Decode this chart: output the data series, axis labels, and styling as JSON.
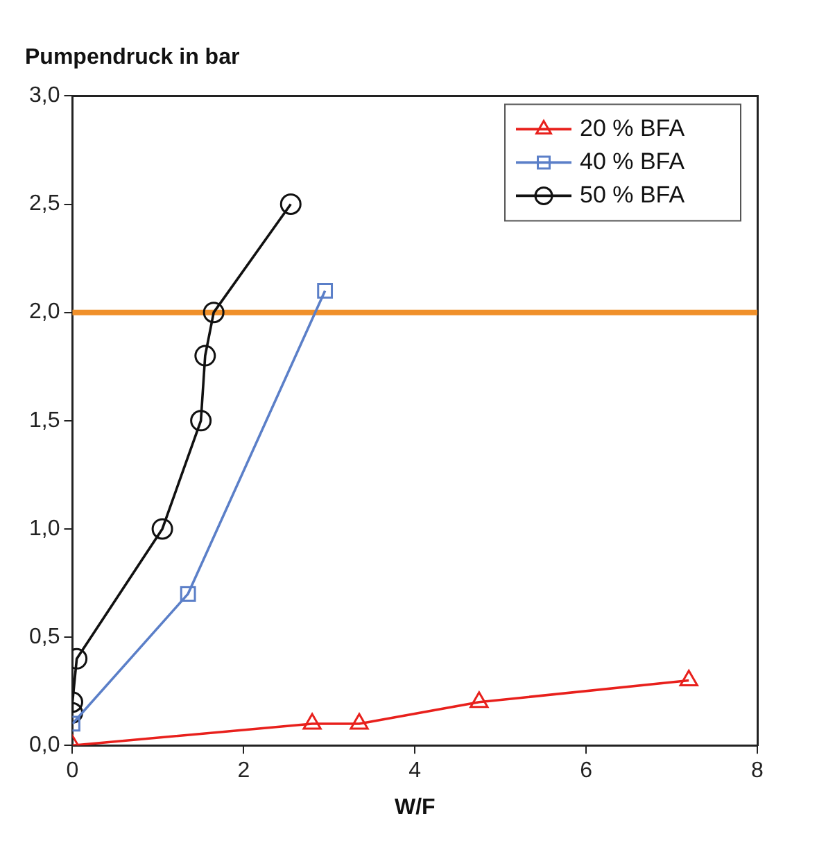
{
  "chart_data": {
    "type": "line",
    "title": "Pumpendruck in bar",
    "xlabel": "W/F",
    "series": [
      {
        "name": "20 % BFA",
        "color": "#e8201c",
        "marker": "triangle",
        "x": [
          0,
          2.8,
          3.35,
          4.75,
          7.2
        ],
        "values": [
          0,
          0.1,
          0.1,
          0.2,
          0.3
        ]
      },
      {
        "name": "40 % BFA",
        "color": "#5b7fc8",
        "marker": "square",
        "x": [
          0,
          1.35,
          2.95
        ],
        "values": [
          0.1,
          0.7,
          2.1
        ]
      },
      {
        "name": "50 % BFA",
        "color": "#111111",
        "marker": "circle",
        "x": [
          0,
          0,
          0.05,
          1.05,
          1.5,
          1.55,
          1.65,
          2.55
        ],
        "values": [
          0.15,
          0.2,
          0.4,
          1.0,
          1.5,
          1.8,
          2.0,
          2.5
        ]
      }
    ],
    "xlim": [
      0,
      8
    ],
    "xticks": [
      0,
      2,
      4,
      6,
      8
    ],
    "ylim": [
      0,
      3
    ],
    "yticks": [
      {
        "value": 0,
        "label": "0,0"
      },
      {
        "value": 0.5,
        "label": "0,5"
      },
      {
        "value": 1,
        "label": "1,0"
      },
      {
        "value": 1.5,
        "label": "1,5"
      },
      {
        "value": 2,
        "label": "2,0"
      },
      {
        "value": 2.5,
        "label": "2,5"
      },
      {
        "value": 3,
        "label": "3,0"
      }
    ],
    "ref_lines": [
      {
        "axis": "y",
        "value": 2,
        "color": "#f0902a"
      }
    ],
    "grid": false,
    "legend": "top right",
    "line_style": "solid"
  }
}
